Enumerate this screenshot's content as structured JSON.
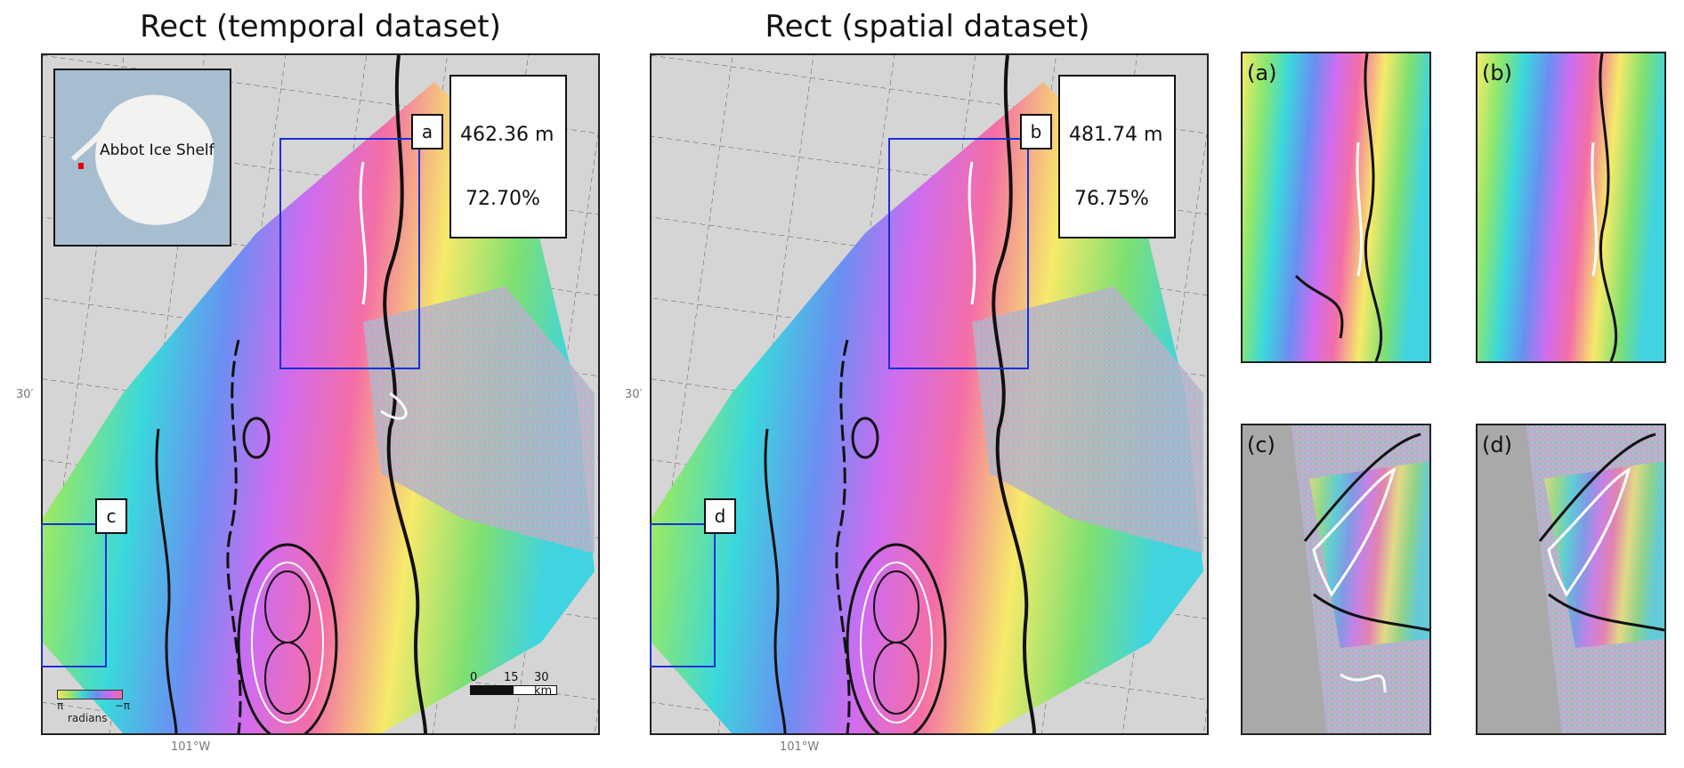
{
  "figure": {
    "panels": [
      {
        "title": "Rect (temporal dataset)",
        "metric_line1": "462.36 m",
        "metric_line2": "72.70%",
        "box_label": "a",
        "side_label": "c"
      },
      {
        "title": "Rect (spatial dataset)",
        "metric_line1": "481.74 m",
        "metric_line2": "76.75%",
        "box_label": "b",
        "side_label": "d"
      }
    ],
    "inset_label": "Abbot Ice Shelf",
    "lat_tick": "30′",
    "lon_tick": "101°W",
    "colorbar": {
      "left": "π",
      "right": "−π",
      "label": "radians"
    },
    "scalebar": {
      "labels": [
        "0",
        "15",
        "30 km"
      ]
    },
    "subpanels": [
      {
        "label": "(a)"
      },
      {
        "label": "(b)"
      },
      {
        "label": "(c)"
      },
      {
        "label": "(d)"
      }
    ],
    "colors": {
      "box_blue": "#1b2fd6",
      "gray_bg": "#a9a9a9",
      "ocean_blue": "#a7bed1",
      "antarctica": "#f2f2f0"
    }
  }
}
